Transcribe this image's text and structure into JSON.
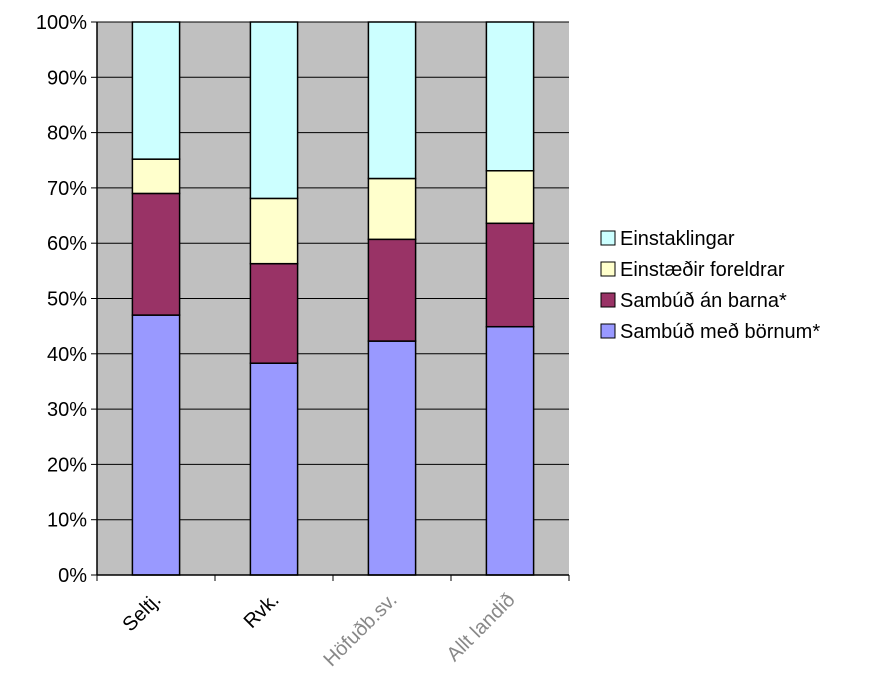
{
  "chart_data": {
    "type": "bar",
    "stacked": true,
    "percent": true,
    "categories": [
      "Seltj.",
      "Rvk.",
      "Höfuðb.sv.",
      "Allt landið"
    ],
    "series": [
      {
        "name": "Sambúð með börnum*",
        "color": "#9999ff",
        "values": [
          47,
          38.3,
          42.3,
          44.9
        ]
      },
      {
        "name": "Sambúð án barna*",
        "color": "#993366",
        "values": [
          22,
          18,
          18.4,
          18.7
        ]
      },
      {
        "name": "Einstæðir foreldrar",
        "color": "#ffffcc",
        "values": [
          6.2,
          11.8,
          11,
          9.5
        ]
      },
      {
        "name": "Einstaklingar",
        "color": "#ccffff",
        "values": [
          24.8,
          31.9,
          28.3,
          26.9
        ]
      }
    ],
    "ylim": [
      0,
      100
    ],
    "yticks": [
      "0%",
      "10%",
      "20%",
      "30%",
      "40%",
      "50%",
      "60%",
      "70%",
      "80%",
      "90%",
      "100%"
    ],
    "grid": true,
    "plot_background": "#c0c0c0",
    "legend_position": "right",
    "legend_order": [
      "Einstaklingar",
      "Einstæðir foreldrar",
      "Sambúð án barna*",
      "Sambúð með börnum*"
    ]
  }
}
